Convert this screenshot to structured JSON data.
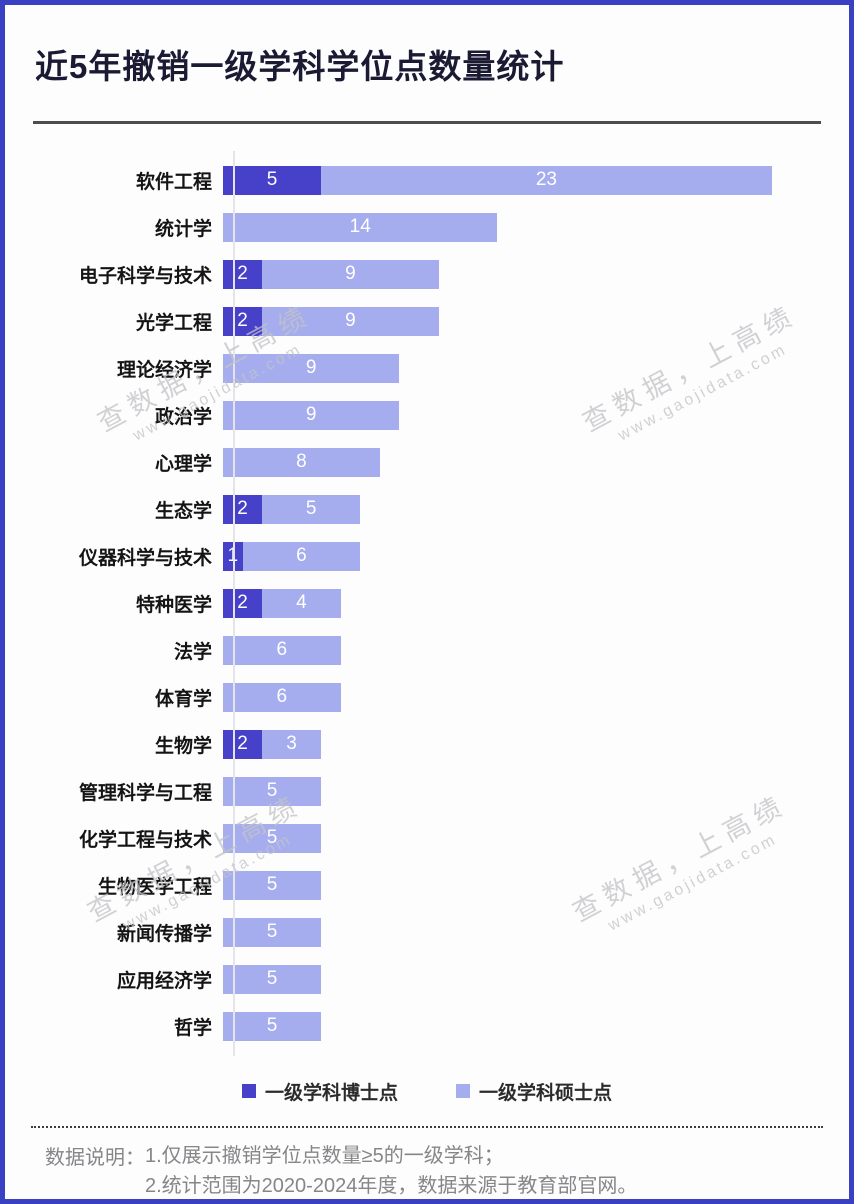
{
  "title": "近5年撤销一级学科学位点数量统计",
  "colors": {
    "frame": "#3a40c2",
    "doctoral": "#4741ca",
    "masters": "#a6adee",
    "title_text": "#1a1a33"
  },
  "chart_data": {
    "type": "bar",
    "orientation": "horizontal",
    "stacked": true,
    "title": "近5年撤销一级学科学位点数量统计",
    "xlabel": "",
    "ylabel": "",
    "xlim": [
      0,
      28
    ],
    "grid": false,
    "legend_position": "bottom",
    "categories": [
      "软件工程",
      "统计学",
      "电子科学与技术",
      "光学工程",
      "理论经济学",
      "政治学",
      "心理学",
      "生态学",
      "仪器科学与技术",
      "特种医学",
      "法学",
      "体育学",
      "生物学",
      "管理科学与工程",
      "化学工程与技术",
      "生物医学工程",
      "新闻传播学",
      "应用经济学",
      "哲学"
    ],
    "series": [
      {
        "name": "一级学科博士点",
        "color": "#4741ca",
        "values": [
          5,
          0,
          2,
          2,
          0,
          0,
          0,
          2,
          1,
          2,
          0,
          0,
          2,
          0,
          0,
          0,
          0,
          0,
          0
        ]
      },
      {
        "name": "一级学科硕士点",
        "color": "#a6adee",
        "values": [
          23,
          14,
          9,
          9,
          9,
          9,
          8,
          5,
          6,
          4,
          6,
          6,
          3,
          5,
          5,
          5,
          5,
          5,
          5
        ]
      }
    ]
  },
  "legend": {
    "doctoral_label": "一级学科博士点",
    "masters_label": "一级学科硕士点"
  },
  "watermark": {
    "line1": "查数据，上高绩",
    "line2": "www.gaojidata.com"
  },
  "footer": {
    "label": "数据说明：",
    "note1": "1.仅展示撤销学位点数量≥5的一级学科；",
    "note2": "2.统计范围为2020-2024年度，数据来源于教育部官网。"
  }
}
